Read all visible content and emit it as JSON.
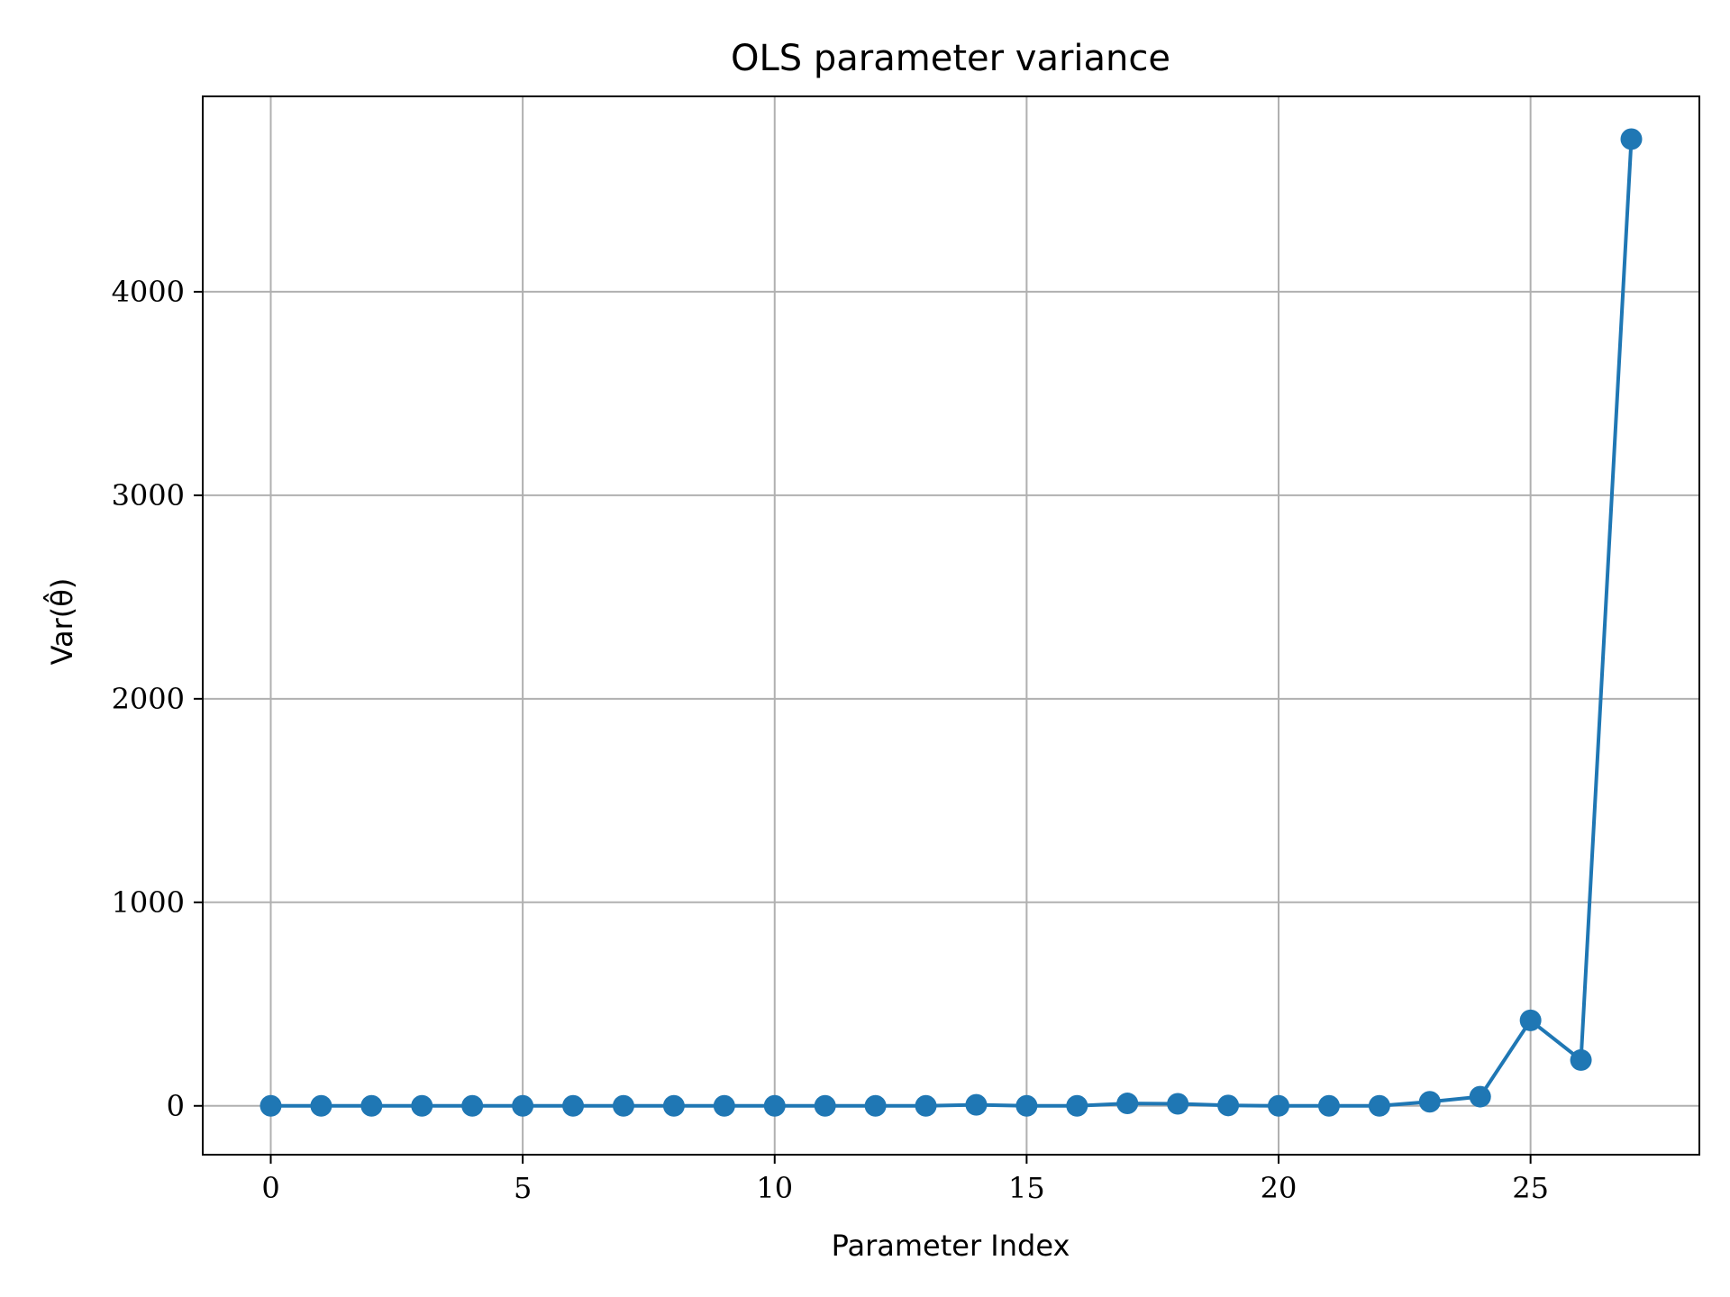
{
  "chart_data": {
    "type": "line",
    "title": "OLS parameter variance",
    "xlabel": "Parameter Index",
    "ylabel": "Var(θ̂)",
    "xlim": [
      -1.35,
      28.35
    ],
    "ylim": [
      -240,
      4960
    ],
    "xticks": [
      0,
      5,
      10,
      15,
      20,
      25
    ],
    "yticks": [
      0,
      1000,
      2000,
      3000,
      4000
    ],
    "grid": true,
    "series": [
      {
        "color": "#1f77b4",
        "marker": "circle",
        "x": [
          0,
          1,
          2,
          3,
          4,
          5,
          6,
          7,
          8,
          9,
          10,
          11,
          12,
          13,
          14,
          15,
          16,
          17,
          18,
          19,
          20,
          21,
          22,
          23,
          24,
          25,
          26,
          27
        ],
        "y": [
          0,
          0,
          0,
          0,
          0,
          0,
          0,
          0,
          0,
          0,
          0,
          0,
          0,
          0,
          5,
          0,
          0,
          12,
          10,
          2,
          0,
          0,
          0,
          20,
          45,
          420,
          225,
          4750
        ]
      }
    ]
  }
}
